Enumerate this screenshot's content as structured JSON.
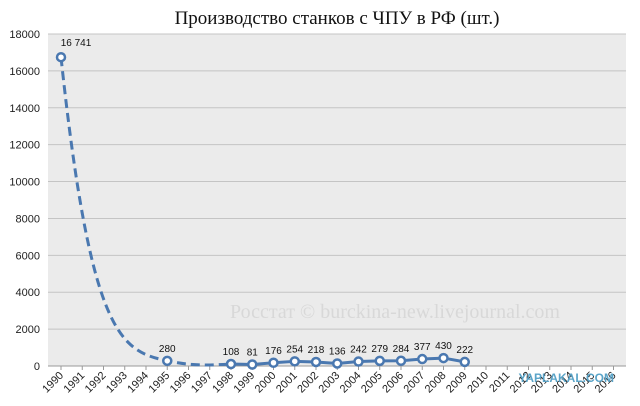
{
  "chart_data": {
    "type": "line",
    "title": "Производство станков с ЧПУ в РФ (шт.)",
    "xlabel": "",
    "ylabel": "",
    "ylim": [
      0,
      18000
    ],
    "yticks": [
      "0",
      "2000",
      "4000",
      "6000",
      "8000",
      "10000",
      "12000",
      "14000",
      "16000",
      "18000"
    ],
    "categories": [
      "1990",
      "1991",
      "1992",
      "1993",
      "1994",
      "1995",
      "1996",
      "1997",
      "1998",
      "1999",
      "2000",
      "2001",
      "2002",
      "2003",
      "2004",
      "2005",
      "2006",
      "2007",
      "2008",
      "2009",
      "2010",
      "2011",
      "2012",
      "2013",
      "2014",
      "2015",
      "2016"
    ],
    "measured": [
      {
        "year": "1990",
        "value": 16741,
        "label": "16 741"
      },
      {
        "year": "1995",
        "value": 280,
        "label": "280"
      },
      {
        "year": "1998",
        "value": 108,
        "label": "108"
      },
      {
        "year": "1999",
        "value": 81,
        "label": "81"
      },
      {
        "year": "2000",
        "value": 176,
        "label": "176"
      },
      {
        "year": "2001",
        "value": 254,
        "label": "254"
      },
      {
        "year": "2002",
        "value": 218,
        "label": "218"
      },
      {
        "year": "2003",
        "value": 136,
        "label": "136"
      },
      {
        "year": "2004",
        "value": 242,
        "label": "242"
      },
      {
        "year": "2005",
        "value": 279,
        "label": "279"
      },
      {
        "year": "2006",
        "value": 284,
        "label": "284"
      },
      {
        "year": "2007",
        "value": 377,
        "label": "377"
      },
      {
        "year": "2008",
        "value": 430,
        "label": "430"
      },
      {
        "year": "2009",
        "value": 222,
        "label": "222"
      }
    ],
    "line_color": "#4a78b0",
    "grid": true,
    "plot_background": "#ebebeb"
  },
  "watermarks": {
    "source": "Росстат © burckina-new.livejournal.com",
    "site": "YAPLAKAL.COM"
  }
}
